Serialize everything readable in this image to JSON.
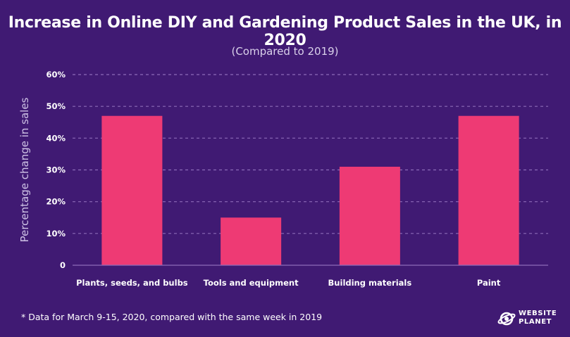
{
  "title": "Increase in Online DIY and Gardening Product Sales in the UK, in 2020",
  "subtitle": "(Compared to 2019)",
  "footnote": "* Data for March 9-15, 2020, compared with the same week in 2019",
  "logo": {
    "line1": "WEBSITE",
    "line2": "PLANET"
  },
  "colors": {
    "background": "#401a73",
    "bar": "#ee3a74",
    "grid": "#8c6bb8",
    "text": "#ffffff"
  },
  "chart_data": {
    "type": "bar",
    "title": "Increase in Online DIY and Gardening Product Sales in the UK, in 2020",
    "subtitle": "(Compared to 2019)",
    "xlabel": "",
    "ylabel": "Percentage change in sales",
    "categories": [
      "Plants, seeds, and bulbs",
      "Tools and equipment",
      "Building materials",
      "Paint"
    ],
    "values": [
      47,
      15,
      31,
      47
    ],
    "ylim": [
      0,
      60
    ],
    "yticks": [
      0,
      10,
      20,
      30,
      40,
      50,
      60
    ],
    "ytick_labels": [
      "0",
      "10%",
      "20%",
      "30%",
      "40%",
      "50%",
      "60%"
    ],
    "grid": true,
    "legend": "none"
  }
}
